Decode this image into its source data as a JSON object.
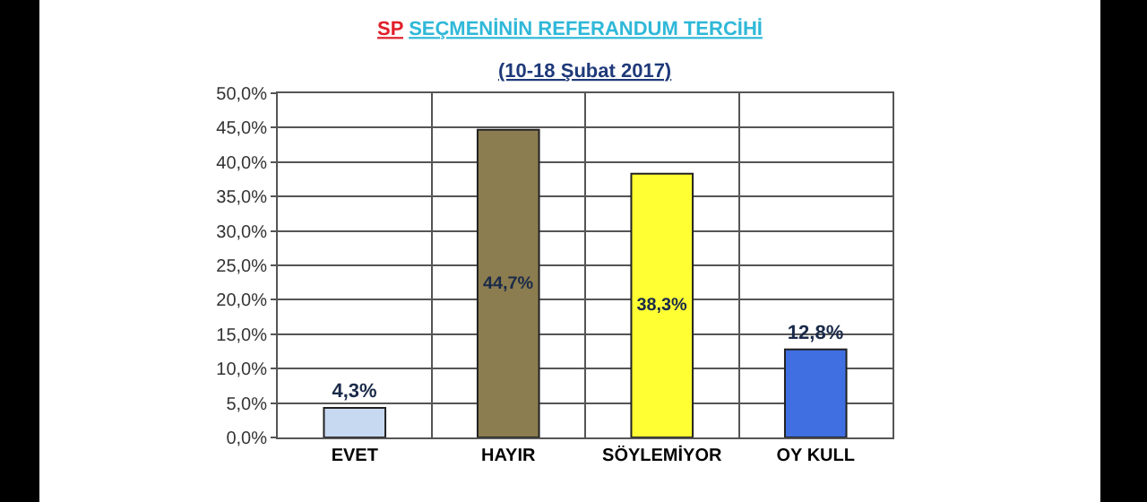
{
  "chart_data": {
    "type": "bar",
    "title": "SP SEÇMENİNİN REFERANDUM TERCİHİ",
    "subtitle": "(10-18 Şubat 2017)",
    "categories": [
      "EVET",
      "HAYIR",
      "SÖYLEMİYOR",
      "OY KULL"
    ],
    "values": [
      4.3,
      44.7,
      38.3,
      12.8
    ],
    "colors": [
      "#c6d9f1",
      "#8b7d4f",
      "#ffff33",
      "#3f6fe0"
    ],
    "value_labels": [
      "4,3%",
      "44,7%",
      "38,3%",
      "12,8%"
    ],
    "ylim": [
      0,
      50
    ],
    "yticks": [
      {
        "value": 0,
        "label": "0,0%"
      },
      {
        "value": 5,
        "label": "5,0%"
      },
      {
        "value": 10,
        "label": "10,0%"
      },
      {
        "value": 15,
        "label": "15,0%"
      },
      {
        "value": 20,
        "label": "20,0%"
      },
      {
        "value": 25,
        "label": "25,0%"
      },
      {
        "value": 30,
        "label": "30,0%"
      },
      {
        "value": 35,
        "label": "35,0%"
      },
      {
        "value": 40,
        "label": "40,0%"
      },
      {
        "value": 45,
        "label": "45,0%"
      },
      {
        "value": 50,
        "label": "50,0%"
      }
    ],
    "grid": true
  }
}
